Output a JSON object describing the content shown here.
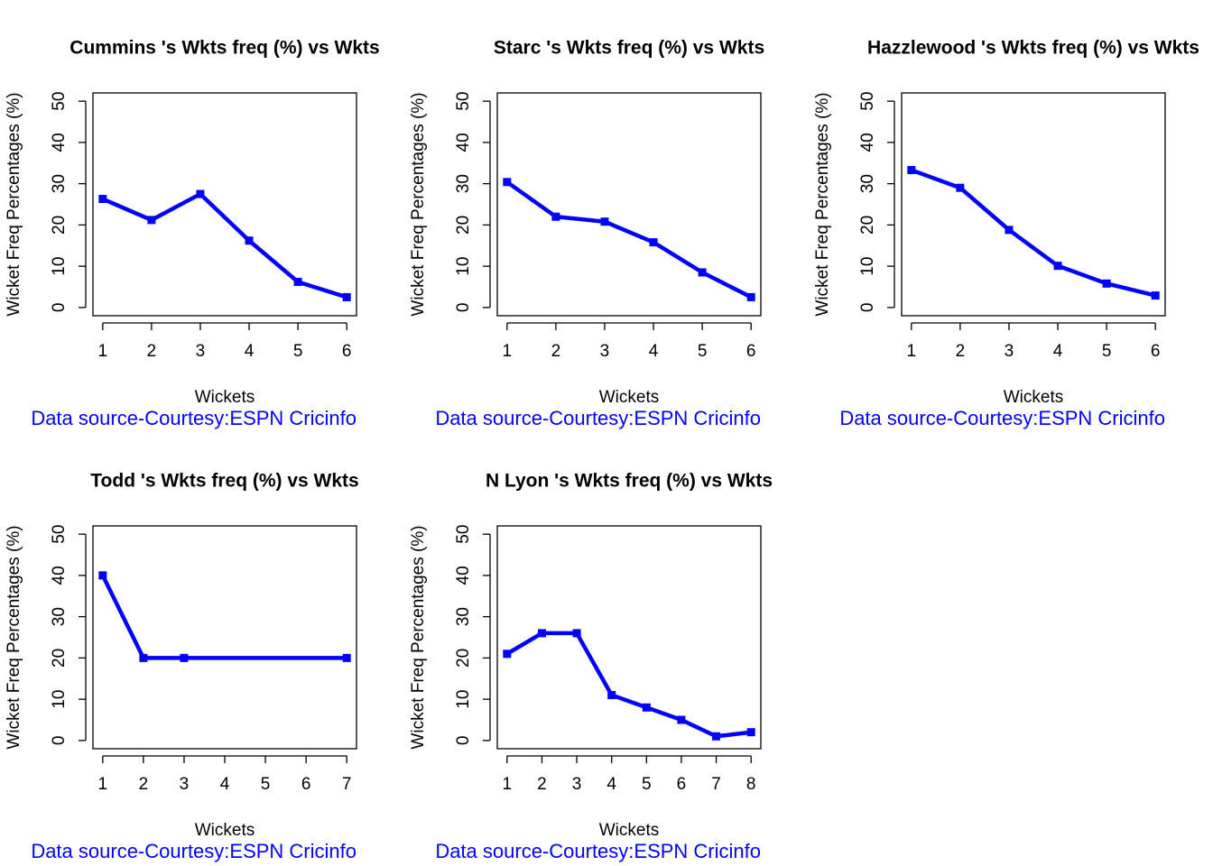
{
  "chart_data": [
    {
      "type": "line",
      "title": "Cummins 's Wkts freq (%) vs Wkts",
      "xlabel": "Wickets",
      "ylabel": "Wicket Freq Percentages (%)",
      "caption": "Data source-Courtesy:ESPN Cricinfo",
      "color": "#0000ff",
      "x": [
        1,
        2,
        3,
        4,
        5,
        6
      ],
      "values": [
        26.3,
        21.2,
        27.5,
        16.2,
        6.2,
        2.5
      ],
      "xlim": [
        0.8,
        6.2
      ],
      "xticks": [
        1,
        2,
        3,
        4,
        5,
        6
      ],
      "ylim": [
        -2,
        52
      ],
      "yticks": [
        0,
        10,
        20,
        30,
        40,
        50
      ]
    },
    {
      "type": "line",
      "title": "Starc 's Wkts freq (%) vs Wkts",
      "xlabel": "Wickets",
      "ylabel": "Wicket Freq Percentages (%)",
      "caption": "Data source-Courtesy:ESPN Cricinfo",
      "color": "#0000ff",
      "x": [
        1,
        2,
        3,
        4,
        5,
        6
      ],
      "values": [
        30.4,
        22,
        20.8,
        15.8,
        8.5,
        2.5
      ],
      "xlim": [
        0.8,
        6.2
      ],
      "xticks": [
        1,
        2,
        3,
        4,
        5,
        6
      ],
      "ylim": [
        -2,
        52
      ],
      "yticks": [
        0,
        10,
        20,
        30,
        40,
        50
      ]
    },
    {
      "type": "line",
      "title": "Hazzlewood 's Wkts freq (%) vs Wkts",
      "xlabel": "Wickets",
      "ylabel": "Wicket Freq Percentages (%)",
      "caption": "Data source-Courtesy:ESPN Cricinfo",
      "color": "#0000ff",
      "x": [
        1,
        2,
        3,
        4,
        5,
        6
      ],
      "values": [
        33.3,
        29,
        18.8,
        10.1,
        5.8,
        2.9
      ],
      "xlim": [
        0.8,
        6.2
      ],
      "xticks": [
        1,
        2,
        3,
        4,
        5,
        6
      ],
      "ylim": [
        -2,
        52
      ],
      "yticks": [
        0,
        10,
        20,
        30,
        40,
        50
      ]
    },
    {
      "type": "line",
      "title": "Todd 's Wkts freq (%) vs Wkts",
      "xlabel": "Wickets",
      "ylabel": "Wicket Freq Percentages (%)",
      "caption": "Data source-Courtesy:ESPN Cricinfo",
      "color": "#0000ff",
      "x": [
        1,
        2,
        3,
        7
      ],
      "values": [
        40,
        20,
        20,
        20
      ],
      "xlim": [
        0.76,
        7.24
      ],
      "xticks": [
        1,
        2,
        3,
        4,
        5,
        6,
        7
      ],
      "ylim": [
        -2,
        52
      ],
      "yticks": [
        0,
        10,
        20,
        30,
        40,
        50
      ]
    },
    {
      "type": "line",
      "title": "N Lyon 's Wkts freq (%) vs Wkts",
      "xlabel": "Wickets",
      "ylabel": "Wicket Freq Percentages (%)",
      "caption": "Data source-Courtesy:ESPN Cricinfo",
      "color": "#0000ff",
      "x": [
        1,
        2,
        3,
        4,
        5,
        6,
        7,
        8
      ],
      "values": [
        21,
        26,
        26,
        11,
        8,
        5,
        1,
        2
      ],
      "xlim": [
        0.72,
        8.28
      ],
      "xticks": [
        1,
        2,
        3,
        4,
        5,
        6,
        7,
        8
      ],
      "ylim": [
        -2,
        52
      ],
      "yticks": [
        0,
        10,
        20,
        30,
        40,
        50
      ]
    }
  ]
}
